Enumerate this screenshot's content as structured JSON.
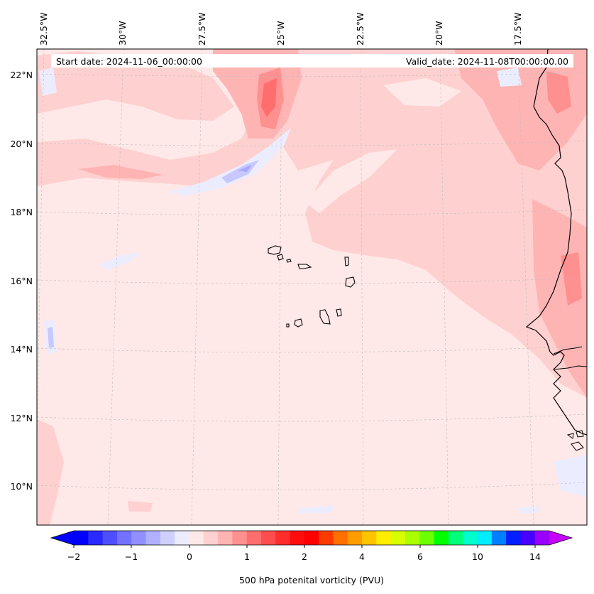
{
  "map": {
    "start_label": "Start date: 2024-11-06_00:00:00",
    "valid_label": "Valid_date: 2024-11-08T00:00:00.00",
    "lon_labels": [
      "32.5°W",
      "30°W",
      "27.5°W",
      "25°W",
      "22.5°W",
      "20°W",
      "17.5°W"
    ],
    "lat_labels": [
      "22°N",
      "20°N",
      "18°N",
      "16°N",
      "14°N",
      "12°N",
      "10°N"
    ]
  },
  "colorbar": {
    "label": "500 hPa potenital vorticity (PVU)",
    "tick_labels": [
      "−2",
      "−1",
      "0",
      "1",
      "2",
      "4",
      "6",
      "10",
      "14"
    ],
    "colors": [
      "#0000ff",
      "#2a2aff",
      "#4e4eff",
      "#7272ff",
      "#9090ff",
      "#b0b0ff",
      "#d0d0ff",
      "#ececff",
      "#ffe8e8",
      "#ffd0d0",
      "#ffb4b4",
      "#ff9090",
      "#ff6e6e",
      "#ff4c4c",
      "#ff2c2c",
      "#ff0c0c",
      "#ff0000",
      "#ff3a00",
      "#ff7000",
      "#ff9c00",
      "#ffc400",
      "#ffee00",
      "#d8ff00",
      "#aaff00",
      "#6cff00",
      "#00ff00",
      "#00ff78",
      "#00ffcc",
      "#00ecff",
      "#0080ff",
      "#0020ff",
      "#4800ff",
      "#9a00ff"
    ],
    "under_color": "#0000ff",
    "over_color": "#c800ff"
  },
  "colors": {
    "background_field": "#ffe8e8",
    "light_pink": "#ffd0d0",
    "mid_pink": "#ffb4b4",
    "strong_pink": "#ff9090",
    "red": "#ff6e6e",
    "light_blue": "#ececff",
    "mid_blue": "#c8c8ff",
    "deep_blue": "#a8a8ff"
  }
}
